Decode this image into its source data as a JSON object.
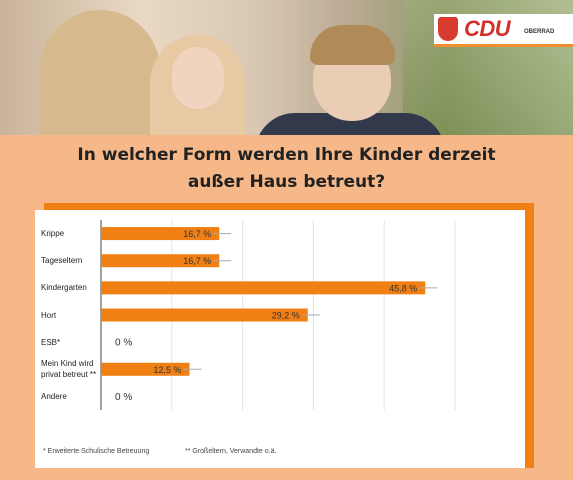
{
  "brand": {
    "name": "CDU",
    "sub": "OBERRAD"
  },
  "title_line1": "In welcher Form werden Ihre Kinder derzeit",
  "title_line2": "außer Haus betreut?",
  "chart_data": {
    "type": "bar",
    "orientation": "horizontal",
    "categories": [
      "Krippe",
      "Tageseltern",
      "Kindergarten",
      "Hort",
      "ESB*",
      "Mein Kind wird privat betreut **",
      "Andere"
    ],
    "category_lines": [
      [
        "Krippe"
      ],
      [
        "Tageseltern"
      ],
      [
        "Kindergarten"
      ],
      [
        "Hort"
      ],
      [
        "ESB*"
      ],
      [
        "Mein Kind wird",
        "privat betreut **"
      ],
      [
        "Andere"
      ]
    ],
    "values": [
      16.7,
      16.7,
      45.8,
      29.2,
      0,
      12.5,
      0
    ],
    "value_labels": [
      "16,7 %",
      "16,7 %",
      "45,8 %",
      "29,2 %",
      "0 %",
      "12,5 %",
      "0 %"
    ],
    "xlim": [
      0,
      50
    ],
    "grid": true,
    "bar_color": "#f07f14"
  },
  "footnote_1": "* Erweiterte Schulische Betreuung",
  "footnote_2": "** Großeltern, Verwandte o.ä."
}
